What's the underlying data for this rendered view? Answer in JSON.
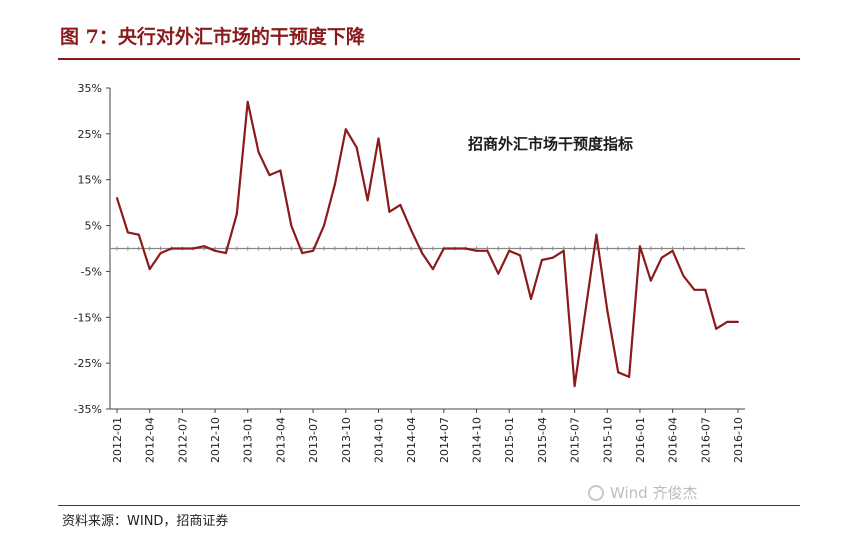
{
  "figure": {
    "title": "图 7：央行对外汇市场的干预度下降",
    "source": "资料来源：WIND，招商证券",
    "watermark": "Wind  齐俊杰"
  },
  "colors": {
    "line": "#8b1a1a",
    "title": "#8b1a1a",
    "axis": "#444444",
    "zero_line": "#888888"
  },
  "chart_data": {
    "type": "line",
    "title": "",
    "xlabel": "",
    "ylabel": "",
    "ylim": [
      -35,
      35
    ],
    "y_ticks": [
      "35%",
      "25%",
      "15%",
      "5%",
      "-5%",
      "-15%",
      "-25%",
      "-35%"
    ],
    "y_tick_values": [
      35,
      25,
      15,
      5,
      -5,
      -15,
      -25,
      -35
    ],
    "x_ticks": [
      "2012-01",
      "2012-04",
      "2012-07",
      "2012-10",
      "2013-01",
      "2013-04",
      "2013-07",
      "2013-10",
      "2014-01",
      "2014-04",
      "2014-07",
      "2014-10",
      "2015-01",
      "2015-04",
      "2015-07",
      "2015-10",
      "2016-01",
      "2016-04",
      "2016-07",
      "2016-10"
    ],
    "legend": "top-right",
    "series": [
      {
        "name": "招商外汇市场干预度指标",
        "x": [
          "2012-01",
          "2012-02",
          "2012-03",
          "2012-04",
          "2012-05",
          "2012-06",
          "2012-07",
          "2012-08",
          "2012-09",
          "2012-10",
          "2012-11",
          "2012-12",
          "2013-01",
          "2013-02",
          "2013-03",
          "2013-04",
          "2013-05",
          "2013-06",
          "2013-07",
          "2013-08",
          "2013-09",
          "2013-10",
          "2013-11",
          "2013-12",
          "2014-01",
          "2014-02",
          "2014-03",
          "2014-04",
          "2014-05",
          "2014-06",
          "2014-07",
          "2014-08",
          "2014-09",
          "2014-10",
          "2014-11",
          "2014-12",
          "2015-01",
          "2015-02",
          "2015-03",
          "2015-04",
          "2015-05",
          "2015-06",
          "2015-07",
          "2015-08",
          "2015-09",
          "2015-10",
          "2015-11",
          "2015-12",
          "2016-01",
          "2016-02",
          "2016-03",
          "2016-04",
          "2016-05",
          "2016-06",
          "2016-07",
          "2016-08",
          "2016-09",
          "2016-10"
        ],
        "values": [
          11,
          3.5,
          3,
          -4.5,
          -1,
          0,
          0,
          0,
          0.5,
          -0.5,
          -1,
          7.5,
          32,
          21,
          16,
          17,
          5,
          -1,
          -0.5,
          5,
          14,
          26,
          22,
          10.5,
          24,
          8,
          9.5,
          4,
          -1,
          -4.5,
          0,
          0,
          0,
          -0.5,
          -0.5,
          -5.5,
          -0.5,
          -1.5,
          -11,
          -2.5,
          -2,
          -0.5,
          -30,
          -13.5,
          3,
          -13.5,
          -27,
          -28,
          0.5,
          -7,
          -2,
          -0.5,
          -6,
          -9,
          -9,
          -17.5,
          -16,
          -16
        ]
      }
    ]
  }
}
